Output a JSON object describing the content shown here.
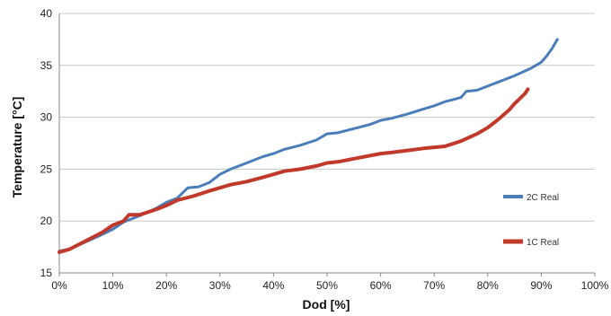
{
  "chart_data": {
    "type": "line",
    "title": "",
    "xlabel": "Dod [%]",
    "ylabel": "Temperature [°C]",
    "xlim": [
      0,
      100
    ],
    "ylim": [
      15,
      40
    ],
    "x_ticks": [
      "0%",
      "10%",
      "20%",
      "30%",
      "40%",
      "50%",
      "60%",
      "70%",
      "80%",
      "90%",
      "100%"
    ],
    "y_ticks": [
      "15",
      "20",
      "25",
      "30",
      "35",
      "40"
    ],
    "grid": "horizontal",
    "legend_position": "right",
    "series": [
      {
        "name": "2C Real",
        "color": "#4a7ebb",
        "x": [
          0,
          2,
          5,
          8,
          10,
          12,
          15,
          18,
          20,
          22,
          24,
          26,
          28,
          30,
          32,
          35,
          38,
          40,
          42,
          45,
          48,
          50,
          52,
          55,
          58,
          60,
          62,
          65,
          68,
          70,
          72,
          75,
          76,
          78,
          80,
          82,
          85,
          88,
          90,
          91,
          92,
          93
        ],
        "y": [
          17.1,
          17.3,
          18.0,
          18.7,
          19.2,
          19.9,
          20.5,
          21.2,
          21.8,
          22.2,
          23.2,
          23.3,
          23.7,
          24.5,
          25.0,
          25.6,
          26.2,
          26.5,
          26.9,
          27.3,
          27.8,
          28.4,
          28.5,
          28.9,
          29.3,
          29.7,
          29.9,
          30.3,
          30.8,
          31.1,
          31.5,
          31.9,
          32.5,
          32.6,
          33.0,
          33.4,
          34.0,
          34.7,
          35.3,
          35.9,
          36.6,
          37.5
        ]
      },
      {
        "name": "1C Real",
        "color": "#c0392b",
        "x": [
          0,
          2,
          5,
          8,
          10,
          12,
          13,
          15,
          18,
          20,
          22,
          25,
          28,
          30,
          32,
          35,
          38,
          40,
          42,
          45,
          48,
          50,
          52,
          55,
          58,
          60,
          62,
          65,
          68,
          70,
          72,
          75,
          78,
          80,
          82,
          84,
          85,
          86,
          87,
          87.5
        ],
        "y": [
          17.0,
          17.3,
          18.1,
          18.9,
          19.6,
          20.0,
          20.6,
          20.6,
          21.1,
          21.5,
          22.0,
          22.4,
          22.9,
          23.2,
          23.5,
          23.8,
          24.2,
          24.5,
          24.8,
          25.0,
          25.3,
          25.6,
          25.7,
          26.0,
          26.3,
          26.5,
          26.6,
          26.8,
          27.0,
          27.1,
          27.2,
          27.7,
          28.4,
          29.0,
          29.8,
          30.7,
          31.3,
          31.8,
          32.3,
          32.7
        ]
      }
    ]
  }
}
